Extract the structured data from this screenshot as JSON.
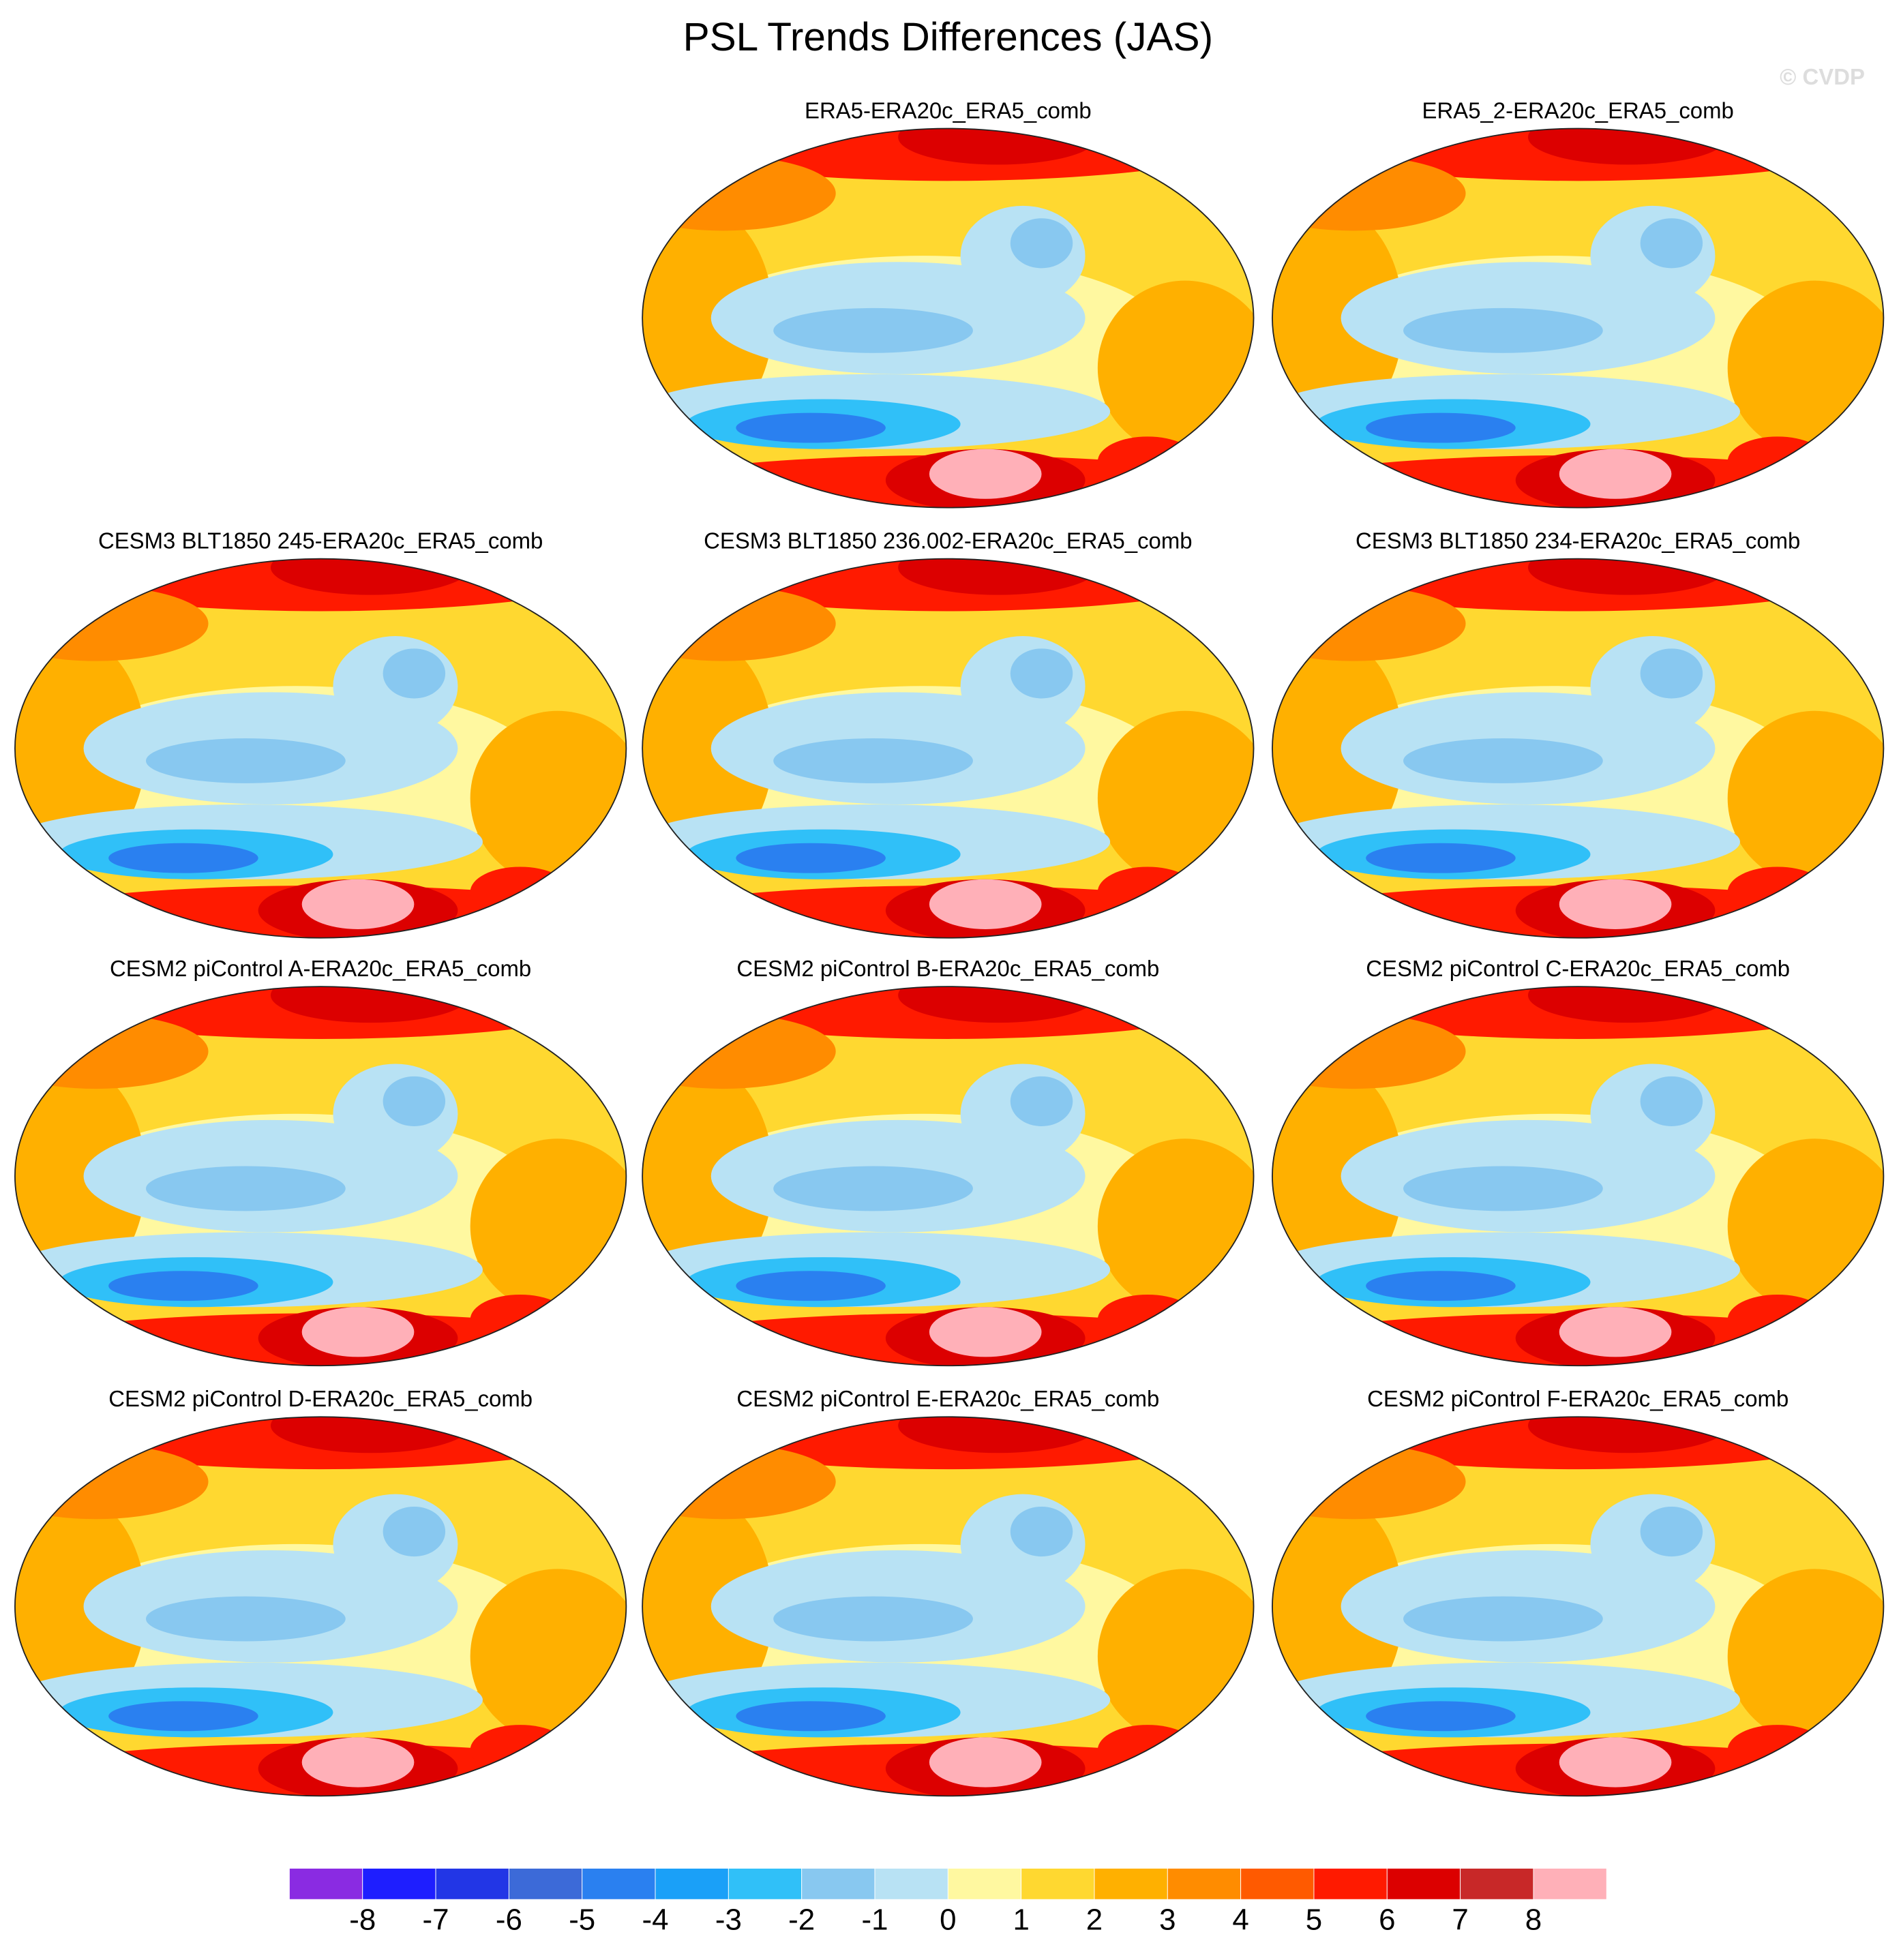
{
  "title": "PSL Trends Differences (JAS)",
  "watermark": "© CVDP",
  "panels": [
    {
      "title": "ERA5-ERA20c_ERA5_comb"
    },
    {
      "title": "ERA5_2-ERA20c_ERA5_comb"
    },
    {
      "title": "CESM3 BLT1850 245-ERA20c_ERA5_comb"
    },
    {
      "title": "CESM3 BLT1850 236.002-ERA20c_ERA5_comb"
    },
    {
      "title": "CESM3 BLT1850 234-ERA20c_ERA5_comb"
    },
    {
      "title": "CESM2 piControl A-ERA20c_ERA5_comb"
    },
    {
      "title": "CESM2 piControl B-ERA20c_ERA5_comb"
    },
    {
      "title": "CESM2 piControl C-ERA20c_ERA5_comb"
    },
    {
      "title": "CESM2 piControl D-ERA20c_ERA5_comb"
    },
    {
      "title": "CESM2 piControl E-ERA20c_ERA5_comb"
    },
    {
      "title": "CESM2 piControl F-ERA20c_ERA5_comb"
    }
  ],
  "colorbar": {
    "levels": [
      -8,
      -7,
      -6,
      -5,
      -4,
      -3,
      -2,
      -1,
      0,
      1,
      2,
      3,
      4,
      5,
      6,
      7,
      8
    ],
    "colors": [
      "#8a2be2",
      "#1e1eff",
      "#2236e6",
      "#3c6ad8",
      "#2a80f0",
      "#1aa0f8",
      "#30c0f8",
      "#88c8f0",
      "#b8e2f4",
      "#fff8a0",
      "#ffd830",
      "#ffb000",
      "#ff8c00",
      "#ff5a00",
      "#ff1a00",
      "#dc0000",
      "#c82828",
      "#ffb0b8"
    ]
  }
}
